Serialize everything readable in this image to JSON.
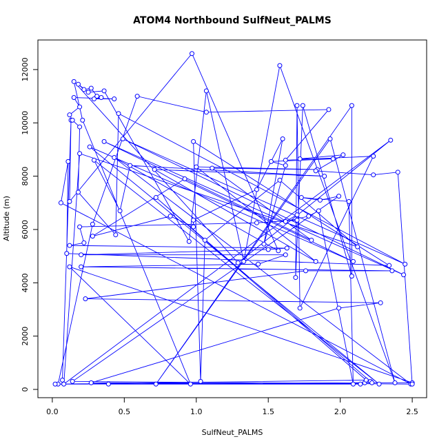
{
  "chart_data": {
    "type": "line",
    "marker": "circle",
    "title": "ATOM4 Northbound SulfNeut_PALMS",
    "xlabel": "SulfNeut_PALMS",
    "ylabel": "Altitude (m)",
    "color": "#0000ff",
    "xlim": [
      -0.1,
      2.6
    ],
    "ylim": [
      -310,
      13110
    ],
    "xticks": [
      {
        "value": 0,
        "label": "0.0"
      },
      0.5,
      {
        "value": 1,
        "label": "1.0"
      },
      1.5,
      {
        "value": 2,
        "label": "2.0"
      },
      2.5
    ],
    "yticks": [
      0,
      2000,
      4000,
      6000,
      8000,
      10000,
      12000
    ],
    "grid": false,
    "x": [
      0.07,
      0.13,
      0.12,
      0.97,
      1.57,
      0.43,
      2.49,
      0.06,
      0.11,
      0.1,
      2.34,
      0.98,
      1.03,
      1.06,
      1.58,
      2.12,
      0.19,
      0.08,
      2.35,
      1.29,
      0.15,
      0.21,
      0.96,
      0.12,
      2.5,
      0.04,
      0.28,
      0.59,
      1.07,
      1.92,
      1.62,
      2.23,
      1.72,
      1.7,
      1.69,
      1.74,
      2.08,
      2.08,
      0.72,
      1.93,
      2.38,
      1.58,
      1.33,
      1.07,
      0.95,
      0.36,
      0.25,
      0.18,
      0.22,
      0.27,
      0.31,
      0.34,
      0.29,
      0.43,
      0.15,
      0.19,
      0.12,
      0.14,
      0.19,
      0.18,
      0.44,
      0.46,
      2.45,
      0.49,
      2.44,
      0.36,
      2.09,
      0.26,
      2.27,
      0.29,
      0.47,
      0.54,
      1.89,
      0.71,
      1.83,
      1.0,
      1.84,
      1.11,
      1.8,
      0.92,
      0.28,
      0.82,
      0.98,
      0.98,
      1.42,
      1.6,
      1.47,
      1.62,
      1.52,
      1.95,
      1.72,
      2.02,
      1.83,
      2.23,
      2.4,
      2.5,
      0.14,
      1.99,
      1.86,
      1.73,
      2.06,
      2.09,
      1.85,
      1.78,
      1.62,
      1.7,
      1.7,
      1.42,
      0.19,
      0.22,
      0.12,
      1.63,
      1.5,
      0.2,
      1.62,
      1.43,
      0.2,
      2.36,
      1.76,
      0.23,
      2.28,
      1.99,
      0.27,
      2.14,
      0.39,
      2.17,
      0.02,
      2.18,
      0.72,
      2.21,
      2.22
    ],
    "values": [
      350,
      10100,
      7050,
      12600,
      5200,
      8700,
      200,
      7000,
      8550,
      5100,
      4650,
      9300,
      300,
      5600,
      7850,
      5350,
      8850,
      200,
      9350,
      4750,
      11550,
      10100,
      200,
      4600,
      250,
      200,
      6200,
      11000,
      10400,
      10500,
      8600,
      8750,
      3050,
      10650,
      4200,
      10650,
      4250,
      10650,
      200,
      9400,
      250,
      12150,
      4800,
      11200,
      5550,
      11200,
      11150,
      11450,
      11250,
      11300,
      11000,
      10950,
      10900,
      10900,
      10950,
      10600,
      10300,
      10100,
      9850,
      7400,
      5800,
      10350,
      4700,
      9400,
      4300,
      9300,
      4800,
      9100,
      200,
      8600,
      6700,
      8400,
      8000,
      8250,
      4800,
      8350,
      8250,
      8300,
      5600,
      7900,
      5750,
      6500,
      6100,
      6350,
      7500,
      9400,
      5450,
      8400,
      8550,
      8650,
      8650,
      8800,
      8200,
      8050,
      8150,
      200,
      300,
      7250,
      7100,
      7200,
      7050,
      200,
      6700,
      6500,
      6300,
      6550,
      6350,
      6250,
      6100,
      5500,
      5400,
      5300,
      5250,
      5050,
      5050,
      4700,
      4600,
      4450,
      4450,
      3400,
      3250,
      3050,
      250,
      200,
      200,
      250,
      200,
      350,
      7200,
      300,
      250
    ]
  }
}
